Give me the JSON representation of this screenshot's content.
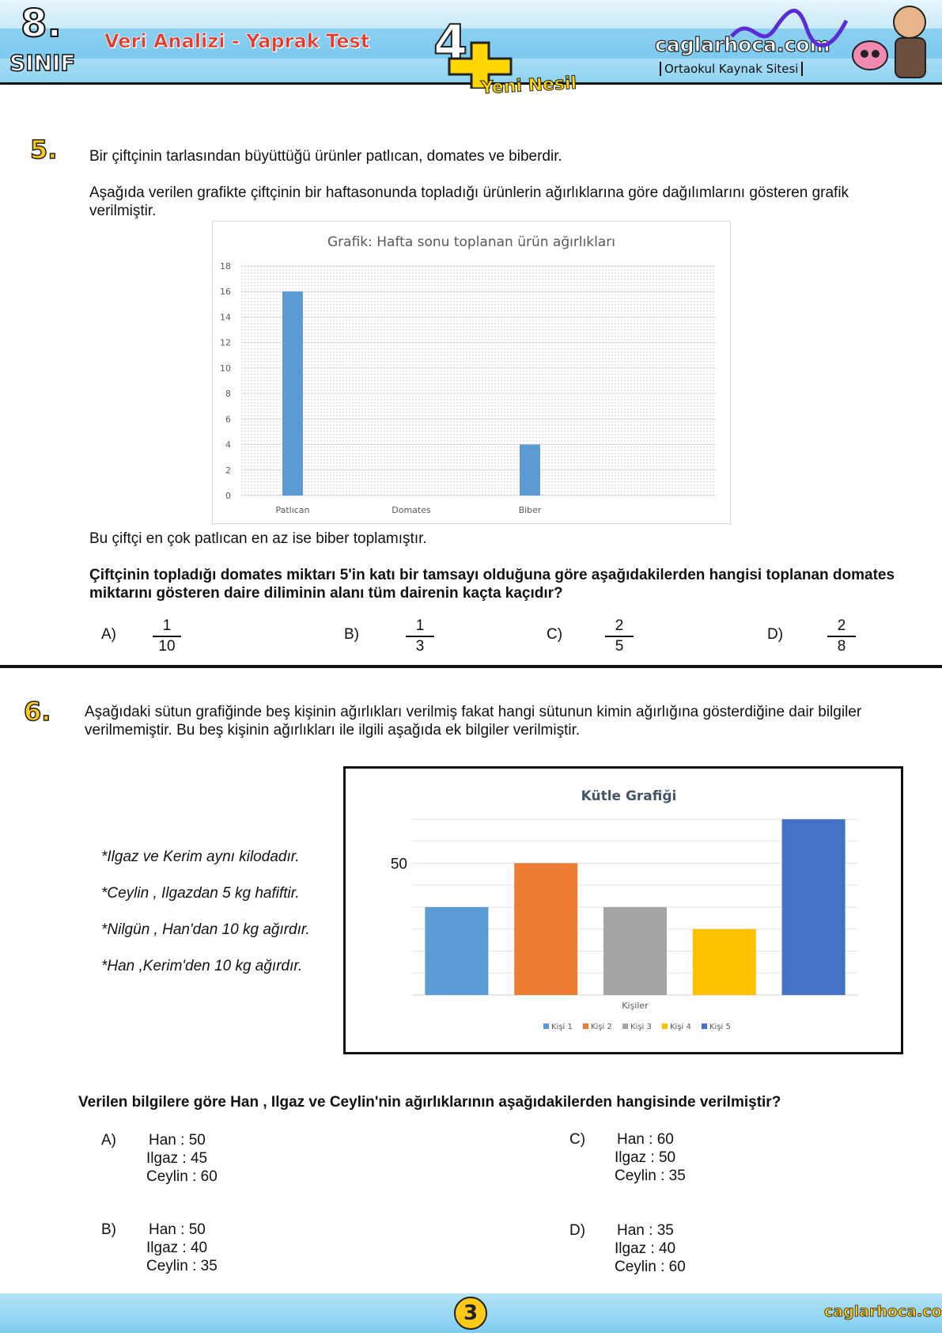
{
  "header": {
    "grade_number": "8.",
    "grade_word": "SINIF",
    "title": "Veri Analizi - Yaprak Test",
    "badge_number": "4",
    "badge_text": "Yeni Nesil",
    "site_name": "caglarhoca.com",
    "site_subtitle": "Ortaokul Kaynak Sitesi"
  },
  "q5": {
    "number": "5.",
    "intro": "Bir çiftçinin tarlasından büyüttüğü ürünler patlıcan, domates ve biberdir.",
    "description": "Aşağıda verilen  grafikte çiftçinin bir haftasonunda  topladığı ürünlerin ağırlıklarına göre dağılımlarını gösteren grafik verilmiştir.",
    "after_chart": "Bu çiftçi en çok patlıcan en az ise biber toplamıştır.",
    "question": "Çiftçinin topladığı domates miktarı 5'in katı bir tamsayı olduğuna göre aşağıdakilerden hangisi toplanan domates miktarını gösteren daire diliminin alanı tüm dairenin kaçta kaçıdır?",
    "options": [
      {
        "label": "A)",
        "num": "1",
        "den": "10"
      },
      {
        "label": "B)",
        "num": "1",
        "den": "3"
      },
      {
        "label": "C)",
        "num": "2",
        "den": "5"
      },
      {
        "label": "D)",
        "num": "2",
        "den": "8"
      }
    ]
  },
  "q6": {
    "number": "6.",
    "intro": "Aşağıdaki sütun grafiğinde beş kişinin ağırlıkları verilmiş fakat hangi sütunun kimin ağırlığına gösterdiğine dair bilgiler verilmemiştir.  Bu beş kişinin ağırlıkları ile ilgili aşağıda ek bilgiler verilmiştir.",
    "clues": [
      "*Ilgaz ve Kerim aynı kilodadır.",
      "*Ceylin , Ilgazdan 5 kg hafiftir.",
      "*Nilgün , Han'dan 10 kg ağırdır.",
      "*Han ,Kerim'den 10 kg ağırdır."
    ],
    "question": "Verilen bilgilere göre Han , Ilgaz ve Ceylin'nin ağırlıklarının aşağıdakilerden hangisinde verilmiştir?",
    "options": [
      {
        "label": "A)",
        "lines": [
          "Han : 50",
          "Ilgaz :  45",
          "Ceylin : 60"
        ]
      },
      {
        "label": "B)",
        "lines": [
          "Han : 50",
          "Ilgaz : 40",
          "Ceylin : 35"
        ]
      },
      {
        "label": "C)",
        "lines": [
          "Han : 60",
          "Ilgaz : 50",
          "Ceylin : 35"
        ]
      },
      {
        "label": "D)",
        "lines": [
          "Han : 35",
          "Ilgaz : 40",
          "Ceylin : 60"
        ]
      }
    ]
  },
  "footer": {
    "page_number": "3",
    "site": "caglarhoca.com"
  },
  "chart_data": [
    {
      "type": "bar",
      "title": "Grafik: Hafta sonu toplanan ürün ağırlıkları",
      "categories": [
        "Patlıcan",
        "Domates",
        "Biber"
      ],
      "values": [
        16,
        null,
        4
      ],
      "yticks": [
        "0",
        "2",
        "4",
        "6",
        "8",
        "10",
        "12",
        "14",
        "16",
        "18"
      ],
      "ylim": [
        0,
        18
      ],
      "xlabel": "",
      "ylabel": "",
      "color": "#5b9bd5",
      "grid": true
    },
    {
      "type": "bar",
      "title": "Kütle Grafiği",
      "xlabel": "Kişiler",
      "ylabel": "",
      "ytick_labels": [
        "50"
      ],
      "ylim": [
        20,
        60
      ],
      "grid": true,
      "legend_position": "bottom",
      "series": [
        {
          "name": "Kişi 1",
          "value": 40,
          "color": "#5b9bd5"
        },
        {
          "name": "Kişi 2",
          "value": 50,
          "color": "#ed7d31"
        },
        {
          "name": "Kişi 3",
          "value": 40,
          "color": "#a5a5a5"
        },
        {
          "name": "Kişi 4",
          "value": 35,
          "color": "#ffc000"
        },
        {
          "name": "Kişi 5",
          "value": 60,
          "color": "#4472c4"
        }
      ]
    }
  ]
}
